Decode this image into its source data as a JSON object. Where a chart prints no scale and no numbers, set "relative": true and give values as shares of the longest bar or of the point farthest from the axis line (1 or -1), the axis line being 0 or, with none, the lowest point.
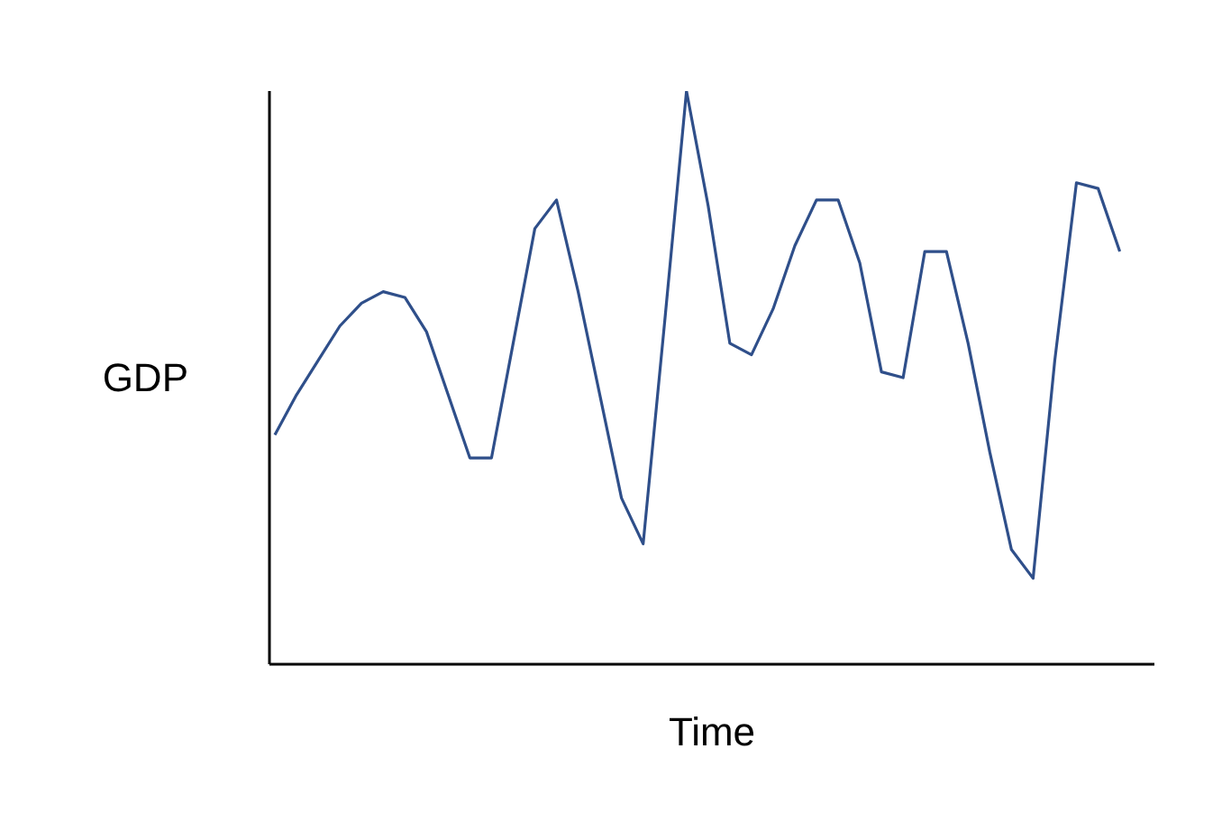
{
  "chart_data": {
    "type": "line",
    "xlabel": "Time",
    "ylabel": "GDP",
    "relative": true,
    "marker": "none",
    "line_style": "solid",
    "categories": [
      null,
      null,
      null,
      null,
      null,
      null,
      null,
      null,
      null,
      null,
      null,
      null,
      null,
      null,
      null,
      null,
      null,
      null,
      null,
      null,
      null,
      null,
      null,
      null,
      null,
      null,
      null,
      null,
      null,
      null,
      null,
      null,
      null,
      null,
      null,
      null,
      null,
      null,
      null,
      null
    ],
    "series": [
      {
        "color": "#2f4f8a",
        "values": [
          0.4,
          0.47,
          0.53,
          0.59,
          0.63,
          0.65,
          0.64,
          0.58,
          0.47,
          0.36,
          0.36,
          0.56,
          0.76,
          0.81,
          0.65,
          0.47,
          0.29,
          0.21,
          0.6,
          1.0,
          0.8,
          0.56,
          0.54,
          0.62,
          0.73,
          0.81,
          0.81,
          0.7,
          0.51,
          0.5,
          0.72,
          0.72,
          0.56,
          0.37,
          0.2,
          0.15,
          0.53,
          0.84,
          0.83,
          0.72
        ]
      }
    ]
  }
}
